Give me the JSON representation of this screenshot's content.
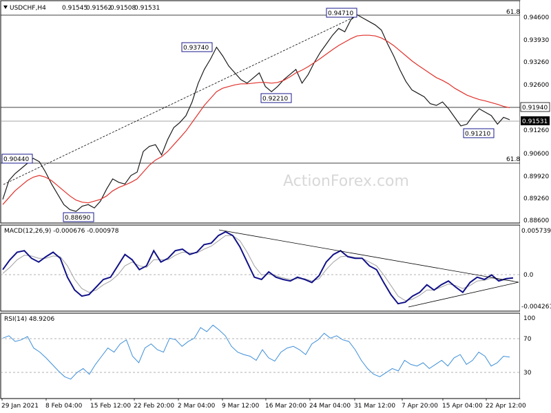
{
  "chart_data": [
    {
      "type": "candlestick",
      "pane": "price",
      "title": "USDCHF,H4",
      "ohlc": [
        "0.91545",
        "0.91562",
        "0.91508",
        "0.91531"
      ],
      "watermark": "ActionForex.com",
      "ylim": [
        0.8855,
        0.9495
      ],
      "y_ticks": [
        "0.94600",
        "0.93930",
        "0.93260",
        "0.92600",
        "0.91940",
        "0.91260",
        "0.90600",
        "0.89920",
        "0.89260",
        "0.88600"
      ],
      "current_price": "0.91531",
      "marked_level": "0.91940",
      "close_series": [
        0.892,
        0.8975,
        0.8995,
        0.901,
        0.9025,
        0.904,
        0.903,
        0.9,
        0.8965,
        0.8935,
        0.8905,
        0.889,
        0.8885,
        0.89,
        0.8905,
        0.8895,
        0.8915,
        0.895,
        0.898,
        0.897,
        0.8965,
        0.899,
        0.9,
        0.906,
        0.9075,
        0.908,
        0.905,
        0.9095,
        0.913,
        0.9145,
        0.9165,
        0.9205,
        0.926,
        0.93,
        0.933,
        0.9365,
        0.934,
        0.931,
        0.929,
        0.927,
        0.926,
        0.9275,
        0.929,
        0.925,
        0.9235,
        0.925,
        0.927,
        0.9285,
        0.93,
        0.926,
        0.9285,
        0.932,
        0.935,
        0.9375,
        0.94,
        0.942,
        0.941,
        0.9445,
        0.946,
        0.945,
        0.944,
        0.943,
        0.9415,
        0.9375,
        0.934,
        0.93,
        0.9265,
        0.924,
        0.923,
        0.922,
        0.92,
        0.9195,
        0.9205,
        0.9185,
        0.916,
        0.9135,
        0.914,
        0.9165,
        0.9185,
        0.9175,
        0.9165,
        0.914,
        0.916,
        0.9153
      ],
      "ma_series": [
        0.8905,
        0.8925,
        0.8945,
        0.896,
        0.8975,
        0.8985,
        0.899,
        0.8985,
        0.8975,
        0.896,
        0.8945,
        0.893,
        0.8918,
        0.8912,
        0.891,
        0.8915,
        0.892,
        0.893,
        0.8945,
        0.8955,
        0.8962,
        0.897,
        0.898,
        0.9,
        0.902,
        0.9035,
        0.9045,
        0.906,
        0.908,
        0.91,
        0.912,
        0.9145,
        0.917,
        0.9195,
        0.9215,
        0.9235,
        0.9245,
        0.925,
        0.9255,
        0.9258,
        0.9258,
        0.926,
        0.9262,
        0.9262,
        0.926,
        0.9262,
        0.9268,
        0.9278,
        0.929,
        0.9298,
        0.9308,
        0.932,
        0.9332,
        0.9345,
        0.9358,
        0.937,
        0.938,
        0.939,
        0.9398,
        0.94,
        0.94,
        0.9398,
        0.9392,
        0.9382,
        0.937,
        0.9355,
        0.934,
        0.9325,
        0.9312,
        0.93,
        0.9288,
        0.9276,
        0.9268,
        0.9258,
        0.9245,
        0.9235,
        0.9225,
        0.9218,
        0.9212,
        0.9208,
        0.9203,
        0.9198,
        0.9192,
        0.9188
      ],
      "price_labels": [
        "0.94710",
        "0.93740",
        "0.92210",
        "0.90440",
        "0.88690",
        "0.91210"
      ],
      "fib_labels": [
        "61.8",
        "61.8"
      ]
    },
    {
      "type": "line",
      "pane": "macd",
      "title": "MACD(12,26,9) -0.000676 -0.000978",
      "ylim": [
        -0.0048,
        0.0062
      ],
      "y_ticks": [
        "0.005739",
        "0.0",
        "-0.004261"
      ],
      "macd_series": [
        0.0005,
        0.0018,
        0.0028,
        0.003,
        0.002,
        0.0015,
        0.0022,
        0.0028,
        0.002,
        -0.0005,
        -0.0022,
        -0.003,
        -0.0028,
        -0.0018,
        -0.0008,
        -0.0005,
        0.001,
        0.0025,
        0.0018,
        0.0005,
        0.001,
        0.003,
        0.0015,
        0.002,
        0.003,
        0.0032,
        0.0025,
        0.0028,
        0.0038,
        0.004,
        0.005,
        0.0055,
        0.005,
        0.0035,
        0.0015,
        -0.0005,
        -0.0008,
        0.0002,
        -0.0005,
        -0.0008,
        -0.001,
        -0.0005,
        -0.0008,
        -0.0012,
        -0.0003,
        0.0015,
        0.0025,
        0.003,
        0.0022,
        0.002,
        0.002,
        0.001,
        0.0005,
        -0.0012,
        -0.0028,
        -0.004,
        -0.0038,
        -0.003,
        -0.0025,
        -0.0015,
        -0.0022,
        -0.0015,
        -0.001,
        -0.0018,
        -0.0025,
        -0.0012,
        -0.0005,
        -0.0008,
        -0.0002,
        -0.001,
        -0.0007,
        -0.0006
      ],
      "signal_series": [
        0.0,
        0.0008,
        0.0018,
        0.0024,
        0.0023,
        0.002,
        0.002,
        0.0023,
        0.0022,
        0.001,
        -0.0008,
        -0.002,
        -0.0025,
        -0.0022,
        -0.0015,
        -0.001,
        -0.0002,
        0.001,
        0.0015,
        0.001,
        0.0008,
        0.0018,
        0.0018,
        0.0018,
        0.0024,
        0.0028,
        0.0027,
        0.0027,
        0.0032,
        0.0036,
        0.0043,
        0.005,
        0.005,
        0.0043,
        0.0028,
        0.001,
        -0.0002,
        -0.0001,
        -0.0003,
        -0.0006,
        -0.0008,
        -0.0007,
        -0.0007,
        -0.001,
        -0.0007,
        0.0005,
        0.0015,
        0.0022,
        0.0023,
        0.0021,
        0.002,
        0.0015,
        0.001,
        -0.0002,
        -0.0016,
        -0.003,
        -0.0036,
        -0.0034,
        -0.0029,
        -0.0022,
        -0.0022,
        -0.0018,
        -0.0014,
        -0.0016,
        -0.002,
        -0.0016,
        -0.001,
        -0.0009,
        -0.0006,
        -0.0008,
        -0.0009,
        -0.001
      ]
    },
    {
      "type": "line",
      "pane": "rsi",
      "title": "RSI(14) 48.9206",
      "ylim": [
        0,
        100
      ],
      "y_ticks": [
        "100",
        "70",
        "30"
      ],
      "rsi_series": [
        72,
        75,
        68,
        70,
        74,
        60,
        55,
        48,
        40,
        32,
        25,
        22,
        30,
        35,
        28,
        40,
        50,
        60,
        55,
        65,
        70,
        50,
        42,
        60,
        65,
        58,
        55,
        72,
        70,
        62,
        68,
        72,
        85,
        80,
        88,
        82,
        75,
        62,
        55,
        52,
        50,
        45,
        58,
        48,
        44,
        55,
        60,
        62,
        58,
        52,
        65,
        70,
        78,
        72,
        75,
        70,
        68,
        58,
        45,
        35,
        28,
        25,
        30,
        35,
        32,
        45,
        40,
        38,
        42,
        35,
        40,
        45,
        38,
        48,
        52,
        40,
        45,
        55,
        50,
        38,
        42,
        50,
        49
      ]
    }
  ],
  "x_axis_labels": [
    "29 Jan 2021",
    "8 Feb 04:00",
    "15 Feb 12:00",
    "22 Feb 20:00",
    "2 Mar 04:00",
    "9 Mar 12:00",
    "16 Mar 20:00",
    "24 Mar 04:00",
    "31 Mar 12:00",
    "7 Apr 20:00",
    "15 Apr 04:00",
    "22 Apr 12:00"
  ],
  "colors": {
    "price_line": "#1a1a1a",
    "moving_average": "#e0302a",
    "macd_line": "#101088",
    "signal_line": "#a0a0a0",
    "rsi_line": "#3c8ed8",
    "trendline": "#000000",
    "label_border": "#1a1a8c"
  }
}
